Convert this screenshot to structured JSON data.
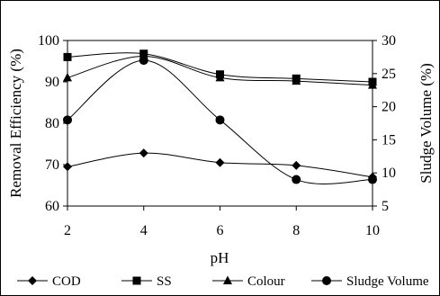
{
  "chart_data": {
    "type": "line",
    "title": "",
    "xlabel": "pH",
    "ylabel": "Removal Efficiency (%)",
    "y2label": "Sludge Volume (%)",
    "x": [
      2,
      4,
      6,
      8,
      10
    ],
    "x_ticks": [
      "2",
      "4",
      "6",
      "8",
      "10"
    ],
    "ylim": [
      60,
      100
    ],
    "y_ticks": [
      "60",
      "70",
      "80",
      "90",
      "100"
    ],
    "y2lim": [
      5,
      30
    ],
    "y2_ticks": [
      "5",
      "10",
      "15",
      "20",
      "25",
      "30"
    ],
    "grid": false,
    "legend_position": "bottom",
    "series": [
      {
        "name": "COD",
        "axis": "left",
        "marker": "diamond",
        "values": [
          69.5,
          72.8,
          70.5,
          69.8,
          67.0
        ]
      },
      {
        "name": "SS",
        "axis": "left",
        "marker": "square",
        "values": [
          96.0,
          96.8,
          91.8,
          90.8,
          90.0
        ]
      },
      {
        "name": "Colour",
        "axis": "left",
        "marker": "triangle",
        "values": [
          91.0,
          96.2,
          91.0,
          90.2,
          89.2
        ]
      },
      {
        "name": "Sludge Volume",
        "axis": "right",
        "marker": "circle",
        "values": [
          18.0,
          27.0,
          18.0,
          9.0,
          9.0
        ]
      }
    ]
  }
}
